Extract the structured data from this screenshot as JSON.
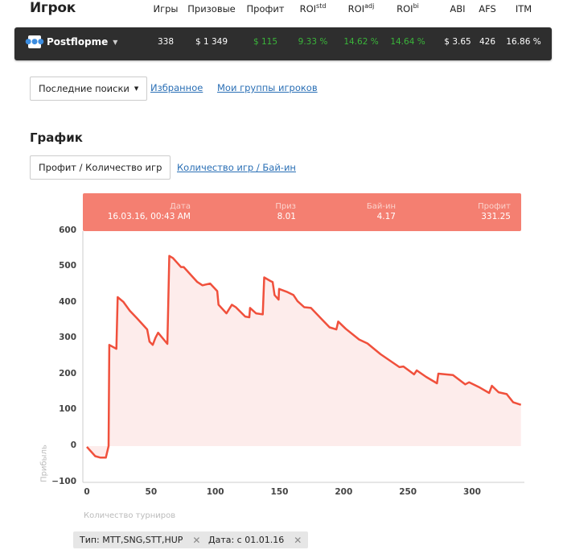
{
  "header": {
    "title": "Игрок",
    "columns": [
      {
        "label": "Игры",
        "sup": ""
      },
      {
        "label": "Призовые",
        "sup": ""
      },
      {
        "label": "Профит",
        "sup": ""
      },
      {
        "label": "ROI",
        "sup": "std"
      },
      {
        "label": "ROI",
        "sup": "adj"
      },
      {
        "label": "ROI",
        "sup": "bi"
      },
      {
        "label": "ABI",
        "sup": ""
      },
      {
        "label": "AFS",
        "sup": ""
      },
      {
        "label": "ITM",
        "sup": ""
      }
    ]
  },
  "player": {
    "name": "Postflopme",
    "values": [
      "338",
      "$ 1 349",
      "$ 115",
      "9.33 %",
      "14.62 %",
      "14.64 %",
      "$ 3.65",
      "426",
      "16.86 %"
    ],
    "positive_color": "#3ab53a"
  },
  "nav": {
    "recent": "Последние поиски",
    "favorites": "Избранное",
    "groups": "Мои группы игроков"
  },
  "section": {
    "title": "График",
    "tab_active": "Профит / Количество игр",
    "tab_other": "Количество игр / Бай-ин"
  },
  "tooltip": {
    "date_label": "Дата",
    "date": "16.03.16, 00:43 AM",
    "prize_label": "Приз",
    "prize": "8.01",
    "buyin_label": "Бай-ин",
    "buyin": "4.17",
    "profit_label": "Профит",
    "profit": "331.25"
  },
  "filters": [
    {
      "label": "Тип: MTT,SNG,STT,HUP"
    },
    {
      "label": "Дата: с 01.01.16"
    }
  ],
  "chart_data": {
    "type": "area",
    "xlabel": "Количество турниров",
    "ylabel": "Прибыль",
    "xlim": [
      0,
      340
    ],
    "ylim": [
      -100,
      600
    ],
    "xticks": [
      "0",
      "50",
      "100",
      "150",
      "200",
      "250",
      "300"
    ],
    "yticks": [
      "600",
      "500",
      "400",
      "300",
      "200",
      "100",
      "0",
      "−100"
    ],
    "line_color": "#f0503c",
    "fill_color": "#fdeceb",
    "x": [
      0,
      6.5,
      10.6,
      14.8,
      16.9,
      17.5,
      23,
      24,
      28.4,
      33.5,
      38.8,
      47,
      48.8,
      51.3,
      53.4,
      55.5,
      62.7,
      64.2,
      67,
      73.3,
      75.4,
      85.8,
      90,
      96,
      101.5,
      102.5,
      108.7,
      112.9,
      116,
      123.3,
      126.5,
      127.1,
      131.7,
      137,
      138.1,
      143,
      144.7,
      146.2,
      149.3,
      149.7,
      155.6,
      160.9,
      164,
      169.3,
      174.5,
      182.8,
      189,
      194.3,
      195.7,
      201.6,
      212,
      218.5,
      228.7,
      243.4,
      246.5,
      254.8,
      256.9,
      264.2,
      272.6,
      273.7,
      285.1,
      294.6,
      297.7,
      306,
      313.3,
      315.4,
      320.6,
      326.9,
      332,
      338
    ],
    "y": [
      -2,
      -28,
      -32,
      -32,
      0,
      282,
      271,
      415,
      402,
      377,
      357,
      325,
      291,
      282,
      302,
      316,
      285,
      530,
      524,
      499,
      499,
      458,
      448,
      453,
      432,
      394,
      370,
      394,
      387,
      361,
      359,
      385,
      370,
      367,
      470,
      460,
      457,
      421,
      408,
      438,
      430,
      421,
      404,
      387,
      385,
      354,
      331,
      325,
      347,
      327,
      297,
      286,
      256,
      220,
      222,
      200,
      211,
      193,
      175,
      202,
      198,
      172,
      178,
      163,
      148,
      168,
      150,
      145,
      122,
      115
    ]
  }
}
